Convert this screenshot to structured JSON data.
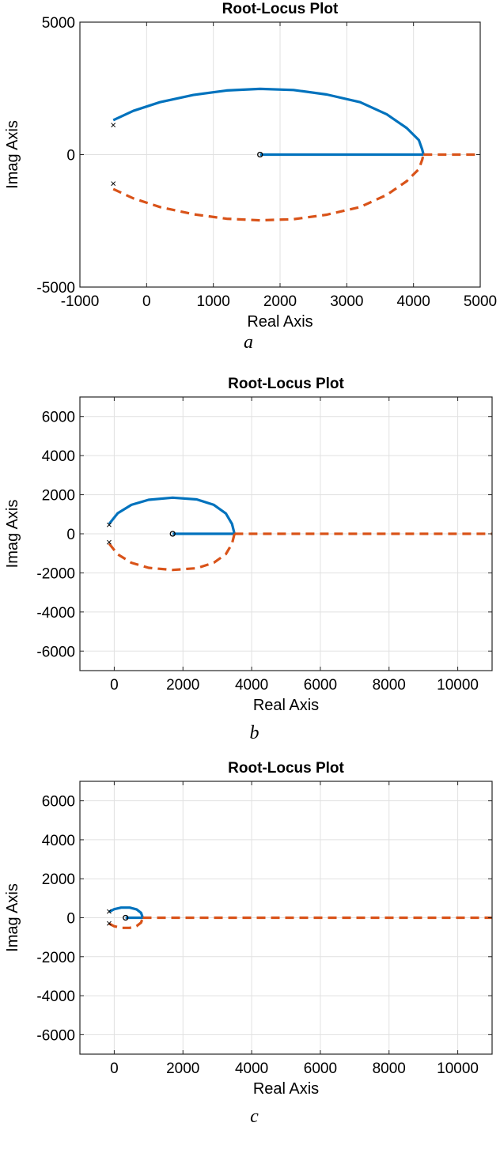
{
  "chart_data": [
    {
      "type": "line",
      "title": "Root-Locus Plot",
      "xlabel": "Real Axis",
      "ylabel": "Imag Axis",
      "caption": "a",
      "xlim": [
        -1000,
        5000
      ],
      "ylim": [
        -5000,
        5000
      ],
      "xticks": [
        -1000,
        0,
        1000,
        2000,
        3000,
        4000,
        5000
      ],
      "yticks": [
        -5000,
        0,
        5000
      ],
      "xtick_labels": [
        "-1000",
        "0",
        "1000",
        "2000",
        "3000",
        "4000",
        "5000"
      ],
      "ytick_labels": [
        "-5000",
        "0",
        "5000"
      ],
      "grid": true,
      "poles": [
        {
          "x": -500,
          "y": 1100
        },
        {
          "x": -500,
          "y": -1100
        }
      ],
      "zeros": [
        {
          "x": 1700,
          "y": 0
        }
      ],
      "series": [
        {
          "color": "#0072BD",
          "dashed": false,
          "points": [
            [
              -500,
              1300
            ],
            [
              -200,
              1650
            ],
            [
              200,
              1980
            ],
            [
              700,
              2250
            ],
            [
              1200,
              2420
            ],
            [
              1700,
              2480
            ],
            [
              2200,
              2440
            ],
            [
              2700,
              2270
            ],
            [
              3200,
              1980
            ],
            [
              3600,
              1520
            ],
            [
              3900,
              1000
            ],
            [
              4080,
              550
            ],
            [
              4130,
              200
            ],
            [
              4150,
              0
            ]
          ]
        },
        {
          "color": "#0072BD",
          "dashed": false,
          "points": [
            [
              1700,
              0
            ],
            [
              4150,
              0
            ]
          ]
        },
        {
          "color": "#D95319",
          "dashed": true,
          "points": [
            [
              -500,
              -1300
            ],
            [
              -200,
              -1650
            ],
            [
              200,
              -1980
            ],
            [
              700,
              -2250
            ],
            [
              1200,
              -2420
            ],
            [
              1700,
              -2480
            ],
            [
              2200,
              -2440
            ],
            [
              2700,
              -2270
            ],
            [
              3200,
              -1980
            ],
            [
              3600,
              -1520
            ],
            [
              3900,
              -1000
            ],
            [
              4080,
              -550
            ],
            [
              4130,
              -200
            ],
            [
              4150,
              0
            ]
          ]
        },
        {
          "color": "#D95319",
          "dashed": true,
          "points": [
            [
              4150,
              0
            ],
            [
              5000,
              0
            ]
          ]
        }
      ]
    },
    {
      "type": "line",
      "title": "Root-Locus Plot",
      "xlabel": "Real Axis",
      "ylabel": "Imag Axis",
      "caption": "b",
      "xlim": [
        -1000,
        11000
      ],
      "ylim": [
        -7000,
        7000
      ],
      "xticks": [
        0,
        2000,
        4000,
        6000,
        8000,
        10000
      ],
      "yticks": [
        -6000,
        -4000,
        -2000,
        0,
        2000,
        4000,
        6000
      ],
      "xtick_labels": [
        "0",
        "2000",
        "4000",
        "6000",
        "8000",
        "10000"
      ],
      "ytick_labels": [
        "-6000",
        "-4000",
        "-2000",
        "0",
        "2000",
        "4000",
        "6000"
      ],
      "grid": true,
      "poles": [
        {
          "x": -150,
          "y": 450
        },
        {
          "x": -150,
          "y": -450
        }
      ],
      "zeros": [
        {
          "x": 1700,
          "y": 0
        }
      ],
      "series": [
        {
          "color": "#0072BD",
          "dashed": false,
          "points": [
            [
              -150,
              500
            ],
            [
              100,
              1050
            ],
            [
              500,
              1480
            ],
            [
              1000,
              1740
            ],
            [
              1700,
              1850
            ],
            [
              2400,
              1760
            ],
            [
              2900,
              1480
            ],
            [
              3250,
              1040
            ],
            [
              3430,
              500
            ],
            [
              3500,
              0
            ]
          ]
        },
        {
          "color": "#0072BD",
          "dashed": false,
          "points": [
            [
              1700,
              0
            ],
            [
              3500,
              0
            ]
          ]
        },
        {
          "color": "#D95319",
          "dashed": true,
          "points": [
            [
              -150,
              -500
            ],
            [
              100,
              -1050
            ],
            [
              500,
              -1480
            ],
            [
              1000,
              -1740
            ],
            [
              1700,
              -1850
            ],
            [
              2400,
              -1760
            ],
            [
              2900,
              -1480
            ],
            [
              3250,
              -1040
            ],
            [
              3430,
              -500
            ],
            [
              3500,
              0
            ]
          ]
        },
        {
          "color": "#D95319",
          "dashed": true,
          "points": [
            [
              3500,
              0
            ],
            [
              11000,
              0
            ]
          ]
        }
      ]
    },
    {
      "type": "line",
      "title": "Root-Locus Plot",
      "xlabel": "Real Axis",
      "ylabel": "Imag Axis",
      "caption": "c",
      "xlim": [
        -1000,
        11000
      ],
      "ylim": [
        -7000,
        7000
      ],
      "xticks": [
        0,
        2000,
        4000,
        6000,
        8000,
        10000
      ],
      "yticks": [
        -6000,
        -4000,
        -2000,
        0,
        2000,
        4000,
        6000
      ],
      "xtick_labels": [
        "0",
        "2000",
        "4000",
        "6000",
        "8000",
        "10000"
      ],
      "ytick_labels": [
        "-6000",
        "-4000",
        "-2000",
        "0",
        "2000",
        "4000",
        "6000"
      ],
      "grid": true,
      "poles": [
        {
          "x": -150,
          "y": 300
        },
        {
          "x": -150,
          "y": -300
        }
      ],
      "zeros": [
        {
          "x": 330,
          "y": 0
        }
      ],
      "series": [
        {
          "color": "#0072BD",
          "dashed": false,
          "points": [
            [
              -150,
              300
            ],
            [
              0,
              440
            ],
            [
              200,
              520
            ],
            [
              450,
              520
            ],
            [
              650,
              430
            ],
            [
              780,
              250
            ],
            [
              830,
              0
            ]
          ]
        },
        {
          "color": "#0072BD",
          "dashed": false,
          "points": [
            [
              330,
              0
            ],
            [
              830,
              0
            ]
          ]
        },
        {
          "color": "#D95319",
          "dashed": true,
          "points": [
            [
              -150,
              -300
            ],
            [
              0,
              -440
            ],
            [
              200,
              -520
            ],
            [
              450,
              -520
            ],
            [
              650,
              -430
            ],
            [
              780,
              -250
            ],
            [
              830,
              0
            ]
          ]
        },
        {
          "color": "#D95319",
          "dashed": true,
          "points": [
            [
              830,
              0
            ],
            [
              11000,
              0
            ]
          ]
        }
      ]
    }
  ]
}
